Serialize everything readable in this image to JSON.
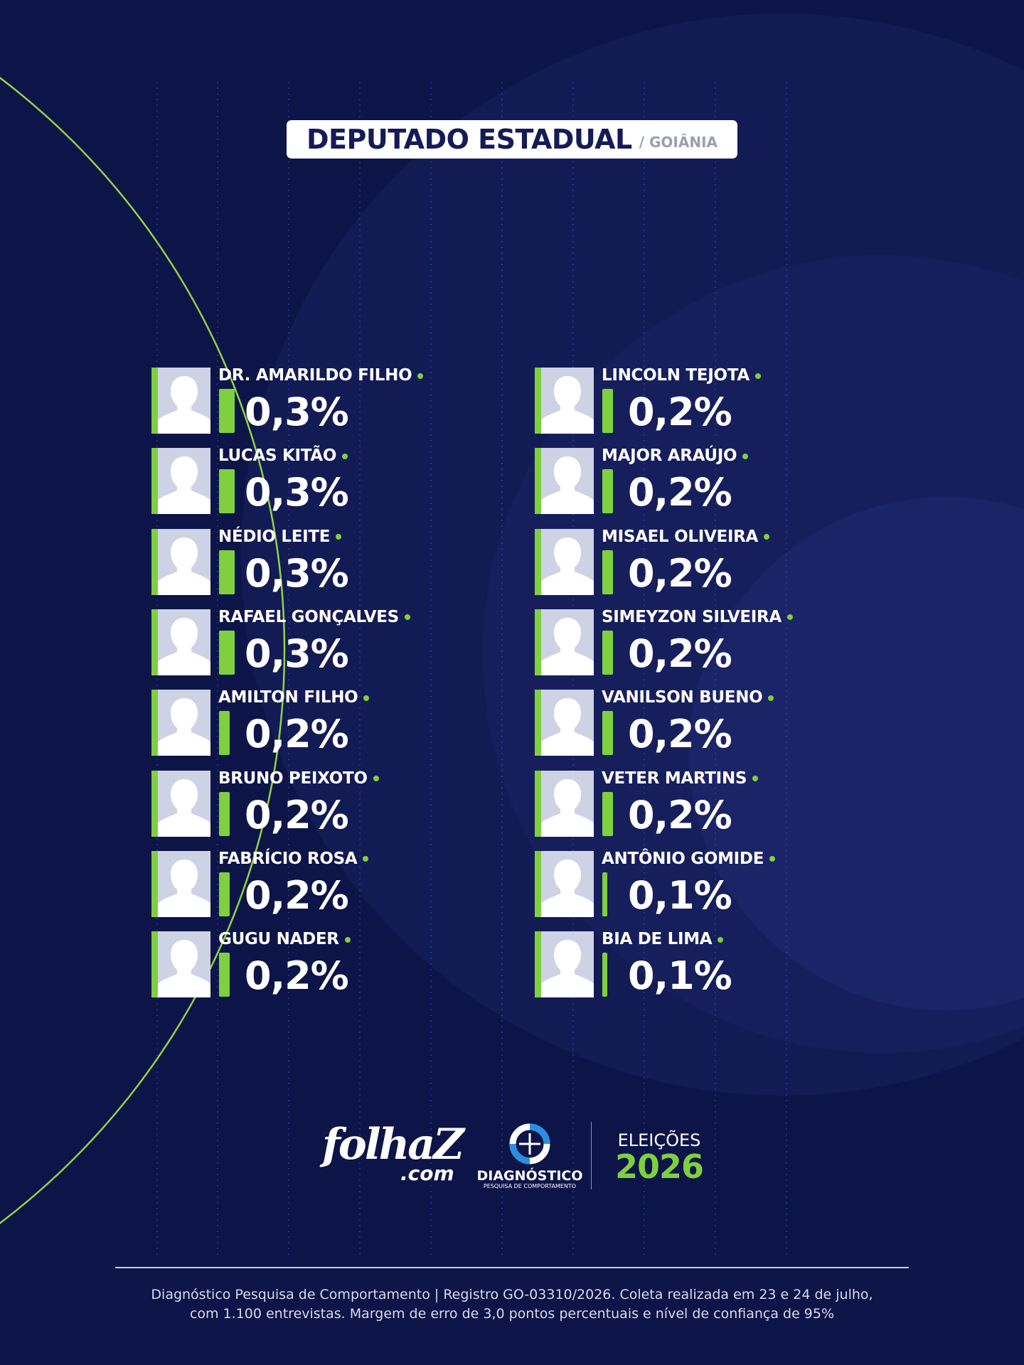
{
  "header": {
    "title": "DEPUTADO ESTADUAL",
    "subtitle": "/ GOIÂNIA"
  },
  "candidates": [
    {
      "name": "DR. AMARILDO FILHO",
      "value": 0.3,
      "value_label": "0,3%"
    },
    {
      "name": "LUCAS KITÃO",
      "value": 0.3,
      "value_label": "0,3%"
    },
    {
      "name": "NÉDIO LEITE",
      "value": 0.3,
      "value_label": "0,3%"
    },
    {
      "name": "RAFAEL GONÇALVES",
      "value": 0.3,
      "value_label": "0,3%"
    },
    {
      "name": "AMILTON FILHO",
      "value": 0.2,
      "value_label": "0,2%"
    },
    {
      "name": "BRUNO PEIXOTO",
      "value": 0.2,
      "value_label": "0,2%"
    },
    {
      "name": "FABRÍCIO ROSA",
      "value": 0.2,
      "value_label": "0,2%"
    },
    {
      "name": "GUGU NADER",
      "value": 0.2,
      "value_label": "0,2%"
    },
    {
      "name": "LINCOLN TEJOTA",
      "value": 0.2,
      "value_label": "0,2%"
    },
    {
      "name": "MAJOR ARAÚJO",
      "value": 0.2,
      "value_label": "0,2%"
    },
    {
      "name": "MISAEL OLIVEIRA",
      "value": 0.2,
      "value_label": "0,2%"
    },
    {
      "name": "SIMEYZON SILVEIRA",
      "value": 0.2,
      "value_label": "0,2%"
    },
    {
      "name": "VANILSON BUENO",
      "value": 0.2,
      "value_label": "0,2%"
    },
    {
      "name": "VETER MARTINS",
      "value": 0.2,
      "value_label": "0,2%"
    },
    {
      "name": "ANTÔNIO GOMIDE",
      "value": 0.1,
      "value_label": "0,1%"
    },
    {
      "name": "BIA DE LIMA",
      "value": 0.1,
      "value_label": "0,1%"
    }
  ],
  "logos": {
    "folha": "folhaZ",
    "folha_domain": ".com",
    "diagnostico": "DIAGNÓSTICO",
    "diagnostico_tagline": "PESQUISA DE COMPORTAMENTO",
    "eleicoes": "ELEIÇÕES",
    "year": "2026"
  },
  "footer": {
    "lines": [
      "Diagnóstico Pesquisa de Comportamento | Registro GO-03310/2026. Coleta realizada em 23 e 24 de julho,",
      "com 1.100 entrevistas. Margem de erro de 3,0 pontos percentuais e nível de confiança de 95%"
    ]
  }
}
